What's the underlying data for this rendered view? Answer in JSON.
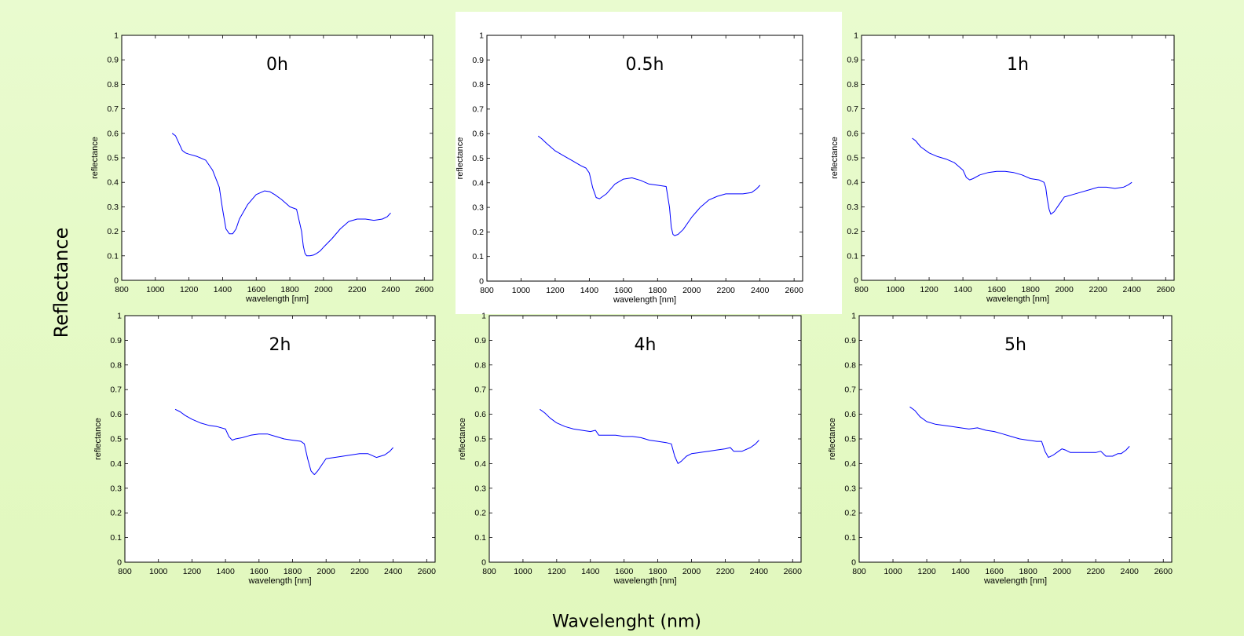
{
  "slide": {
    "y_label": "Reflectance",
    "x_label": "Wavelenght (nm)"
  },
  "colors": {
    "background": "#e4f9c4",
    "highlight_panel": "#ffffff",
    "line": "#0000ff"
  },
  "chart_data": [
    {
      "type": "line",
      "title": "0h",
      "xlabel": "wavelength [nm]",
      "ylabel": "reflectance",
      "xlim": [
        800,
        2650
      ],
      "ylim": [
        0,
        1
      ],
      "xticks": [
        800,
        1000,
        1200,
        1400,
        1600,
        1800,
        2000,
        2200,
        2400,
        2600
      ],
      "yticks": [
        "0",
        "0.1",
        "0.2",
        "0.3",
        "0.4",
        "0.5",
        "0.6",
        "0.7",
        "0.8",
        "0.9",
        "1"
      ],
      "x": [
        1100,
        1120,
        1140,
        1160,
        1180,
        1200,
        1250,
        1300,
        1340,
        1380,
        1400,
        1420,
        1440,
        1460,
        1480,
        1500,
        1550,
        1600,
        1650,
        1680,
        1710,
        1750,
        1800,
        1840,
        1870,
        1880,
        1890,
        1900,
        1920,
        1940,
        1960,
        1980,
        2000,
        2050,
        2100,
        2150,
        2200,
        2250,
        2300,
        2350,
        2380,
        2400
      ],
      "y": [
        0.6,
        0.59,
        0.56,
        0.53,
        0.52,
        0.515,
        0.505,
        0.49,
        0.45,
        0.38,
        0.29,
        0.21,
        0.19,
        0.19,
        0.21,
        0.25,
        0.31,
        0.35,
        0.365,
        0.362,
        0.35,
        0.33,
        0.3,
        0.29,
        0.2,
        0.14,
        0.11,
        0.1,
        0.1,
        0.103,
        0.11,
        0.12,
        0.135,
        0.17,
        0.21,
        0.24,
        0.25,
        0.25,
        0.245,
        0.25,
        0.26,
        0.275
      ]
    },
    {
      "type": "line",
      "title": "0.5h",
      "xlabel": "wavelength [nm]",
      "ylabel": "reflectance",
      "xlim": [
        800,
        2650
      ],
      "ylim": [
        0,
        1
      ],
      "xticks": [
        800,
        1000,
        1200,
        1400,
        1600,
        1800,
        2000,
        2200,
        2400,
        2600
      ],
      "yticks": [
        "0",
        "0.1",
        "0.2",
        "0.3",
        "0.4",
        "0.5",
        "0.6",
        "0.7",
        "0.8",
        "0.9",
        "1"
      ],
      "x": [
        1100,
        1120,
        1150,
        1200,
        1250,
        1300,
        1350,
        1380,
        1400,
        1420,
        1440,
        1460,
        1500,
        1550,
        1600,
        1650,
        1700,
        1750,
        1800,
        1850,
        1870,
        1880,
        1890,
        1900,
        1920,
        1950,
        2000,
        2050,
        2100,
        2150,
        2200,
        2250,
        2300,
        2350,
        2380,
        2400
      ],
      "y": [
        0.59,
        0.58,
        0.56,
        0.53,
        0.51,
        0.49,
        0.47,
        0.46,
        0.44,
        0.38,
        0.34,
        0.335,
        0.355,
        0.395,
        0.415,
        0.42,
        0.41,
        0.395,
        0.39,
        0.385,
        0.3,
        0.22,
        0.19,
        0.185,
        0.19,
        0.21,
        0.26,
        0.3,
        0.33,
        0.345,
        0.355,
        0.355,
        0.355,
        0.36,
        0.375,
        0.39
      ]
    },
    {
      "type": "line",
      "title": "1h",
      "xlabel": "wavelength [nm]",
      "ylabel": "reflectance",
      "xlim": [
        800,
        2650
      ],
      "ylim": [
        0,
        1
      ],
      "xticks": [
        800,
        1000,
        1200,
        1400,
        1600,
        1800,
        2000,
        2200,
        2400,
        2600
      ],
      "yticks": [
        "0",
        "0.1",
        "0.2",
        "0.3",
        "0.4",
        "0.5",
        "0.6",
        "0.7",
        "0.8",
        "0.9",
        "1"
      ],
      "x": [
        1100,
        1120,
        1150,
        1200,
        1250,
        1300,
        1350,
        1400,
        1420,
        1440,
        1460,
        1500,
        1550,
        1600,
        1650,
        1700,
        1750,
        1800,
        1850,
        1880,
        1890,
        1900,
        1910,
        1920,
        1940,
        1970,
        2000,
        2050,
        2100,
        2150,
        2200,
        2250,
        2300,
        2350,
        2380,
        2400
      ],
      "y": [
        0.58,
        0.57,
        0.545,
        0.52,
        0.505,
        0.495,
        0.48,
        0.45,
        0.42,
        0.41,
        0.415,
        0.43,
        0.44,
        0.445,
        0.445,
        0.44,
        0.43,
        0.415,
        0.41,
        0.4,
        0.38,
        0.33,
        0.29,
        0.27,
        0.28,
        0.31,
        0.34,
        0.35,
        0.36,
        0.37,
        0.38,
        0.38,
        0.375,
        0.38,
        0.39,
        0.4
      ]
    },
    {
      "type": "line",
      "title": "2h",
      "xlabel": "wavelength [nm]",
      "ylabel": "reflectance",
      "xlim": [
        800,
        2650
      ],
      "ylim": [
        0,
        1
      ],
      "xticks": [
        800,
        1000,
        1200,
        1400,
        1600,
        1800,
        2000,
        2200,
        2400,
        2600
      ],
      "yticks": [
        "0",
        "0.1",
        "0.2",
        "0.3",
        "0.4",
        "0.5",
        "0.6",
        "0.7",
        "0.8",
        "0.9",
        "1"
      ],
      "x": [
        1100,
        1130,
        1160,
        1200,
        1250,
        1300,
        1350,
        1400,
        1420,
        1440,
        1460,
        1500,
        1550,
        1600,
        1650,
        1700,
        1750,
        1800,
        1850,
        1870,
        1890,
        1910,
        1930,
        1950,
        1980,
        2000,
        2050,
        2100,
        2150,
        2200,
        2250,
        2300,
        2350,
        2380,
        2400
      ],
      "y": [
        0.62,
        0.61,
        0.595,
        0.58,
        0.565,
        0.555,
        0.55,
        0.54,
        0.51,
        0.495,
        0.5,
        0.505,
        0.515,
        0.52,
        0.52,
        0.51,
        0.5,
        0.495,
        0.49,
        0.48,
        0.42,
        0.37,
        0.355,
        0.37,
        0.4,
        0.42,
        0.425,
        0.43,
        0.435,
        0.44,
        0.44,
        0.425,
        0.435,
        0.45,
        0.465
      ]
    },
    {
      "type": "line",
      "title": "4h",
      "xlabel": "wavelength [nm]",
      "ylabel": "reflectance",
      "xlim": [
        800,
        2650
      ],
      "ylim": [
        0,
        1
      ],
      "xticks": [
        800,
        1000,
        1200,
        1400,
        1600,
        1800,
        2000,
        2200,
        2400,
        2600
      ],
      "yticks": [
        "0",
        "0.1",
        "0.2",
        "0.3",
        "0.4",
        "0.5",
        "0.6",
        "0.7",
        "0.8",
        "0.9",
        "1"
      ],
      "x": [
        1100,
        1130,
        1160,
        1200,
        1250,
        1300,
        1350,
        1400,
        1430,
        1450,
        1500,
        1550,
        1600,
        1650,
        1700,
        1750,
        1800,
        1850,
        1880,
        1900,
        1920,
        1940,
        1970,
        2000,
        2050,
        2100,
        2150,
        2200,
        2230,
        2250,
        2300,
        2350,
        2380,
        2400
      ],
      "y": [
        0.62,
        0.605,
        0.585,
        0.565,
        0.55,
        0.54,
        0.535,
        0.53,
        0.535,
        0.515,
        0.515,
        0.515,
        0.51,
        0.51,
        0.505,
        0.495,
        0.49,
        0.485,
        0.48,
        0.43,
        0.4,
        0.41,
        0.43,
        0.44,
        0.445,
        0.45,
        0.455,
        0.46,
        0.465,
        0.45,
        0.45,
        0.465,
        0.48,
        0.495
      ]
    },
    {
      "type": "line",
      "title": "5h",
      "xlabel": "wavelength [nm]",
      "ylabel": "reflectance",
      "xlim": [
        800,
        2650
      ],
      "ylim": [
        0,
        1
      ],
      "xticks": [
        800,
        1000,
        1200,
        1400,
        1600,
        1800,
        2000,
        2200,
        2400,
        2600
      ],
      "yticks": [
        "0",
        "0.1",
        "0.2",
        "0.3",
        "0.4",
        "0.5",
        "0.6",
        "0.7",
        "0.8",
        "0.9",
        "1"
      ],
      "x": [
        1100,
        1130,
        1160,
        1200,
        1250,
        1300,
        1350,
        1400,
        1450,
        1500,
        1550,
        1600,
        1650,
        1700,
        1750,
        1800,
        1850,
        1880,
        1900,
        1920,
        1950,
        1980,
        2000,
        2020,
        2050,
        2100,
        2150,
        2200,
        2230,
        2260,
        2300,
        2330,
        2350,
        2380,
        2400
      ],
      "y": [
        0.63,
        0.615,
        0.59,
        0.57,
        0.56,
        0.555,
        0.55,
        0.545,
        0.54,
        0.545,
        0.535,
        0.53,
        0.52,
        0.51,
        0.5,
        0.495,
        0.49,
        0.49,
        0.45,
        0.425,
        0.435,
        0.45,
        0.46,
        0.455,
        0.445,
        0.445,
        0.445,
        0.445,
        0.45,
        0.43,
        0.43,
        0.44,
        0.44,
        0.455,
        0.47
      ]
    }
  ]
}
